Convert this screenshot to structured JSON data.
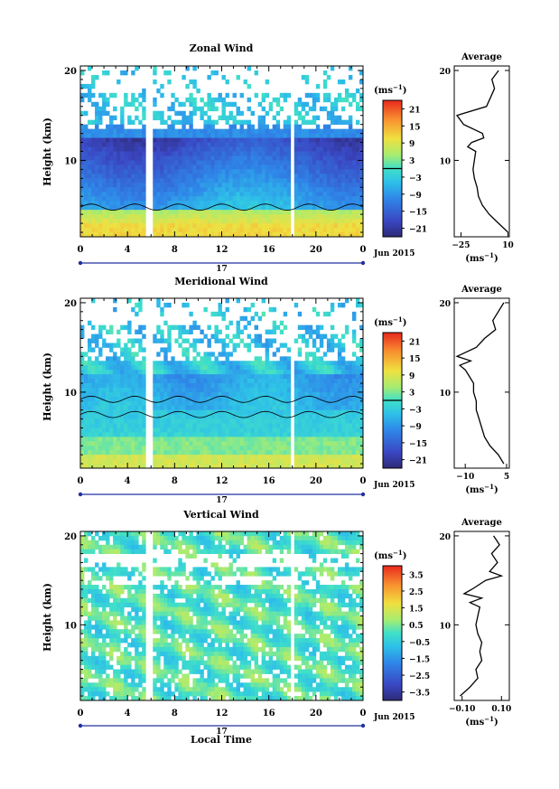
{
  "chart_data": [
    {
      "type": "heatmap",
      "title": "Zonal Wind",
      "ylabel": "Height (km)",
      "xticks": [
        "0",
        "4",
        "8",
        "12",
        "16",
        "20",
        "0"
      ],
      "yticks": [
        "20",
        "10"
      ],
      "ylim": [
        1.5,
        20.5
      ],
      "xlim": [
        0,
        24
      ],
      "date_bar": {
        "day": "17",
        "month": "Jun 2015"
      },
      "colorbar": {
        "unit_base": "(ms",
        "unit_exp": "−1",
        "unit_close": ")",
        "labels": [
          "21",
          "15",
          "9",
          "3",
          "−3",
          "−9",
          "−15",
          "−21"
        ],
        "min": -24,
        "max": 24,
        "zero_line": 0
      },
      "profile": {
        "title": "Average",
        "xticks": [
          "−25",
          "10"
        ],
        "xlim": [
          -30,
          11
        ],
        "yticks": [
          "20",
          "10"
        ],
        "unit_base": "(ms",
        "unit_exp": "−1",
        "unit_close": ")",
        "height_km": [
          2.0,
          3.0,
          4.0,
          5.0,
          6.0,
          7.0,
          8.0,
          9.0,
          10.0,
          11.0,
          11.5,
          12.0,
          12.5,
          13.0,
          14.0,
          15.0,
          16.0,
          17.0,
          18.0,
          19.0,
          20.0
        ],
        "values": [
          10,
          3,
          -4,
          -9,
          -12,
          -13,
          -15,
          -16,
          -15,
          -14,
          -20,
          -17,
          -8,
          -9,
          -23,
          -28,
          -6,
          -3,
          0,
          -2,
          3
        ]
      }
    },
    {
      "type": "heatmap",
      "title": "Meridional Wind",
      "ylabel": "Height (km)",
      "xticks": [
        "0",
        "4",
        "8",
        "12",
        "16",
        "20",
        "0"
      ],
      "yticks": [
        "20",
        "10"
      ],
      "ylim": [
        1.5,
        20.5
      ],
      "xlim": [
        0,
        24
      ],
      "date_bar": {
        "day": "17",
        "month": "Jun 2015"
      },
      "colorbar": {
        "unit_base": "(ms",
        "unit_exp": "−1",
        "unit_close": ")",
        "labels": [
          "21",
          "15",
          "9",
          "3",
          "−3",
          "−9",
          "−15",
          "−21"
        ],
        "min": -24,
        "max": 24,
        "zero_line": 0
      },
      "profile": {
        "title": "Average",
        "xticks": [
          "−10",
          "5"
        ],
        "xlim": [
          -14,
          6
        ],
        "yticks": [
          "20",
          "10"
        ],
        "unit_base": "(ms",
        "unit_exp": "−1",
        "unit_close": ")",
        "height_km": [
          2.0,
          3.0,
          4.0,
          5.0,
          6.0,
          7.0,
          8.0,
          9.0,
          10.0,
          11.0,
          12.0,
          12.5,
          13.0,
          13.5,
          14.0,
          15.0,
          16.0,
          17.0,
          18.0,
          19.0,
          20.0
        ],
        "values": [
          4,
          2,
          -1,
          -3,
          -4,
          -5,
          -6,
          -6,
          -7,
          -7,
          -9,
          -10,
          -12,
          -8,
          -13,
          -6,
          -3,
          1,
          0,
          2,
          4
        ]
      }
    },
    {
      "type": "heatmap",
      "title": "Vertical Wind",
      "ylabel": "Height (km)",
      "xlabel": "Local Time",
      "xticks": [
        "0",
        "4",
        "8",
        "12",
        "16",
        "20",
        "0"
      ],
      "yticks": [
        "20",
        "10"
      ],
      "ylim": [
        1.5,
        20.5
      ],
      "xlim": [
        0,
        24
      ],
      "date_bar": {
        "day": "17",
        "month": "Jun 2015"
      },
      "colorbar": {
        "unit_base": "(ms",
        "unit_exp": "−1",
        "unit_close": ")",
        "labels": [
          "3.5",
          "2.5",
          "1.5",
          "0.5",
          "−0.5",
          "−1.5",
          "−2.5",
          "−3.5"
        ],
        "min": -4,
        "max": 4
      },
      "profile": {
        "title": "Average",
        "xticks": [
          "−0.10",
          "0.10"
        ],
        "xlim": [
          -0.14,
          0.14
        ],
        "yticks": [
          "20",
          "10"
        ],
        "unit_base": "(ms",
        "unit_exp": "−1",
        "unit_close": ")",
        "height_km": [
          2.0,
          3.0,
          4.0,
          5.0,
          6.0,
          7.0,
          8.0,
          9.0,
          10.0,
          11.0,
          12.0,
          12.5,
          13.0,
          13.5,
          14.0,
          15.0,
          15.5,
          16.0,
          17.0,
          18.0,
          19.0,
          20.0
        ],
        "values": [
          -0.11,
          -0.06,
          -0.02,
          -0.03,
          0.0,
          -0.01,
          0.0,
          -0.02,
          -0.03,
          -0.02,
          -0.01,
          -0.06,
          0.0,
          -0.09,
          -0.05,
          0.02,
          0.1,
          0.04,
          0.08,
          0.05,
          0.09,
          0.06
        ]
      }
    }
  ]
}
